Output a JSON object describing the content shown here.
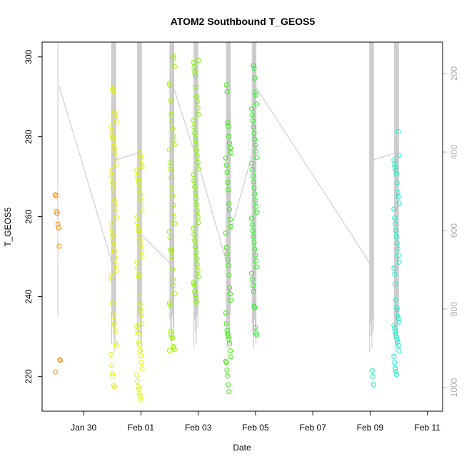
{
  "chart_data": {
    "type": "scatter",
    "title": "ATOM2 Southbound T_GEOS5",
    "xlabel": "Date",
    "ylabel": "T_GEOS5",
    "x_tick_labels": [
      "Jan 30",
      "Feb 01",
      "Feb 03",
      "Feb 05",
      "Feb 07",
      "Feb 09",
      "Feb 11"
    ],
    "y_ticks": [
      220,
      240,
      260,
      280,
      300
    ],
    "ylim": [
      211.3,
      303.7
    ],
    "y2_ticks": [
      200,
      400,
      600,
      800,
      1000
    ],
    "y2lim": [
      1060,
      120
    ],
    "xlim_days": [
      -1.45,
      12.53
    ],
    "grid": false,
    "colors": {
      "axis": "#000000",
      "track": "#c0c0c0",
      "right_axis": "#b0b0b0"
    },
    "series": [
      {
        "day": -0.9,
        "color": "#ff8c00",
        "values": [
          265.5,
          265.2,
          261.3,
          260.8,
          258.1,
          257.2,
          252.6,
          224.2,
          224.0,
          221.1
        ]
      },
      {
        "day": 1.05,
        "color": "#e8f000",
        "values": [
          292,
          291.5,
          290.8,
          286.2,
          285.4,
          284.8,
          283.7,
          282.5,
          281.1,
          280.0,
          279.4,
          278.5,
          277.1,
          276.0,
          274.4,
          272.9,
          271.5,
          270.0,
          268.5,
          267.2,
          265.8,
          264.1,
          262.7,
          261.2,
          259.8,
          258.2,
          256.9,
          255.5,
          253.9,
          252.6,
          251.3,
          249.7,
          248.0,
          246.5,
          245.1,
          244.2,
          238.3,
          235.8,
          234.9,
          233.1,
          231.4,
          228.3,
          227.7,
          225.5,
          222.8,
          220.7,
          220.1,
          217.8,
          217.4
        ]
      },
      {
        "day": 1.95,
        "color": "#d8f500",
        "values": [
          276.2,
          275.4,
          274.7,
          273.1,
          272.4,
          271.6,
          270.1,
          269.3,
          268.6,
          267.1,
          265.7,
          264.2,
          262.8,
          261.4,
          259.9,
          258.5,
          257.1,
          256.3,
          255.6,
          254.2,
          252.9,
          251.4,
          250.1,
          248.6,
          247.2,
          245.5,
          244.8,
          240.2,
          238.1,
          236.6,
          235.4,
          233.2,
          232.5,
          231.4,
          230.7,
          228.6,
          227.9,
          226.4,
          225.2,
          223.5,
          221.9,
          220.3,
          218.7,
          217.5,
          216.8,
          215.6,
          215.0,
          214.1
        ]
      },
      {
        "day": 3.08,
        "color": "#9ef000",
        "values": [
          300.3,
          299.7,
          297.6,
          293.2,
          292.9,
          289.1,
          285.6,
          283.8,
          282.1,
          280.3,
          279.4,
          278.1,
          276.7,
          273.5,
          271.9,
          269.8,
          267.1,
          265.2,
          262.9,
          260.1,
          258.3,
          256.2,
          254.8,
          251.7,
          251.5,
          249.9,
          246.8,
          244.2,
          242.7,
          240.8,
          238.4,
          237.9,
          231.3,
          230.4,
          229.8,
          229.6,
          227.5,
          227.1,
          226.7,
          226.5
        ]
      },
      {
        "day": 3.92,
        "color": "#7ef000",
        "values": [
          299.1,
          298.6,
          297.5,
          296.2,
          295.3,
          292.4,
          290.1,
          288.7,
          287.2,
          285.6,
          284.1,
          282.5,
          281.0,
          279.6,
          278.1,
          276.6,
          275.1,
          273.6,
          272.0,
          270.5,
          269.0,
          267.5,
          266.0,
          264.5,
          263.0,
          261.5,
          260.0,
          258.5,
          257.0,
          255.5,
          254.0,
          252.5,
          251.0,
          249.5,
          248.0,
          246.5,
          245.0,
          243.5,
          243.0,
          241.3,
          240.4,
          239.6,
          238.6
        ]
      },
      {
        "day": 5.05,
        "color": "#30f000",
        "values": [
          293.0,
          291.3,
          283.5,
          282.6,
          280.1,
          278.4,
          277.2,
          276.0,
          274.7,
          272.9,
          271.1,
          268.6,
          266.7,
          263.2,
          261.8,
          259.3,
          257.5,
          255.9,
          252.3,
          250.7,
          249.2,
          247.8,
          245.4,
          242.2,
          240.7,
          239.1,
          235.9,
          233.2,
          231.5,
          230.6,
          230.1,
          229.3,
          228.2,
          226.4,
          224.9,
          223.8,
          223.5,
          221.6,
          220.1,
          217.9,
          216.2
        ]
      },
      {
        "day": 5.95,
        "color": "#28f028",
        "values": [
          297.8,
          297.1,
          294.7,
          291.1,
          290.4,
          288.2,
          287.0,
          285.5,
          284.0,
          282.4,
          280.9,
          279.4,
          277.9,
          276.3,
          274.8,
          273.3,
          271.8,
          270.2,
          268.7,
          267.2,
          265.7,
          264.1,
          262.6,
          261.1,
          259.6,
          258.0,
          256.5,
          255.0,
          253.5,
          251.9,
          250.4,
          248.9,
          247.4,
          245.8,
          244.3,
          242.8,
          241.3,
          237.6,
          237.2,
          232.3,
          230.9,
          230.4
        ]
      },
      {
        "day": 10.05,
        "color": "#1ef0a0",
        "values": [
          221.5,
          220.0,
          218.0
        ]
      },
      {
        "day": 10.92,
        "color": "#10f0c8",
        "values": [
          281.3,
          275.4,
          274.2,
          273.0,
          272.3,
          271.6,
          270.7,
          268.5,
          266.1,
          265.0,
          263.4,
          261.9,
          259.7,
          258.2,
          256.6,
          255.0,
          253.4,
          251.9,
          250.3,
          248.6,
          247.1,
          245.6,
          243.2,
          239.1,
          237.3,
          236.7,
          235.1,
          234.5,
          233.6,
          232.8,
          232.1,
          231.3,
          230.6,
          229.9,
          229.2,
          228.6,
          227.8,
          226.4,
          225.0,
          223.5,
          222.0,
          221.2,
          220.5
        ]
      }
    ]
  }
}
